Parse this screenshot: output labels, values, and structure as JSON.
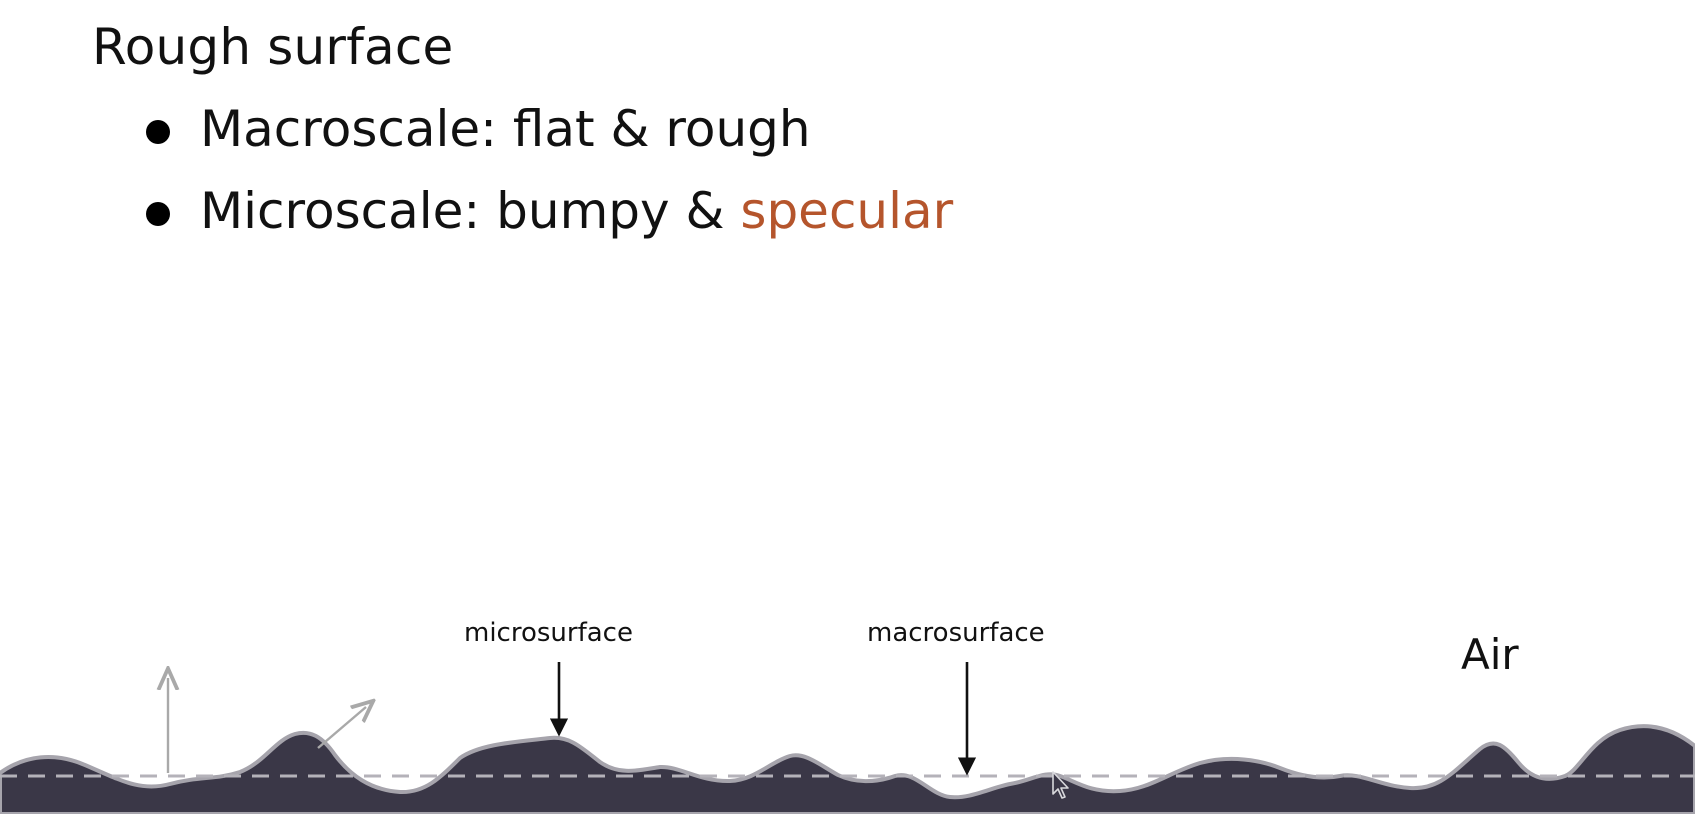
{
  "slide": {
    "title": "Rough surface",
    "bullets": [
      {
        "prefix": "Macroscale: flat & rough",
        "highlight": ""
      },
      {
        "prefix": "Microscale: bumpy & ",
        "highlight": "specular"
      }
    ],
    "highlight_color": "#b5552c"
  },
  "diagram": {
    "labels": {
      "microsurface": "microsurface",
      "macrosurface": "macrosurface",
      "air": "Air"
    },
    "colors": {
      "material_fill": "#3a3747",
      "surface_outline": "#a6a4ac",
      "macrosurface_dash": "#b4b2b9",
      "normal_arrow": "#a9a9a9",
      "pointer_arrow": "#111111"
    },
    "icons": [
      "mouse-cursor-icon"
    ]
  }
}
